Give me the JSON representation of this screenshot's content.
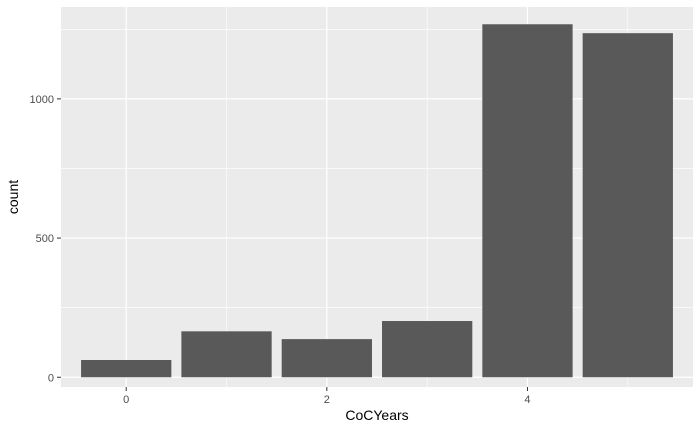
{
  "chart_data": {
    "type": "bar",
    "title": "",
    "xlabel": "CoCYears",
    "ylabel": "count",
    "x": [
      0,
      1,
      2,
      3,
      4,
      5
    ],
    "values": [
      62,
      165,
      137,
      202,
      1268,
      1236
    ],
    "xlim": [
      -0.65,
      5.65
    ],
    "ylim": [
      -35,
      1330
    ],
    "x_ticks": [
      0,
      2,
      4
    ],
    "y_ticks": [
      0,
      500,
      1000
    ],
    "grid": true,
    "colors": {
      "panel": "#ebebeb",
      "grid_major": "#ffffff",
      "bar": "#595959",
      "tick_text": "#4d4d4d",
      "tick_mark": "#333333"
    }
  }
}
